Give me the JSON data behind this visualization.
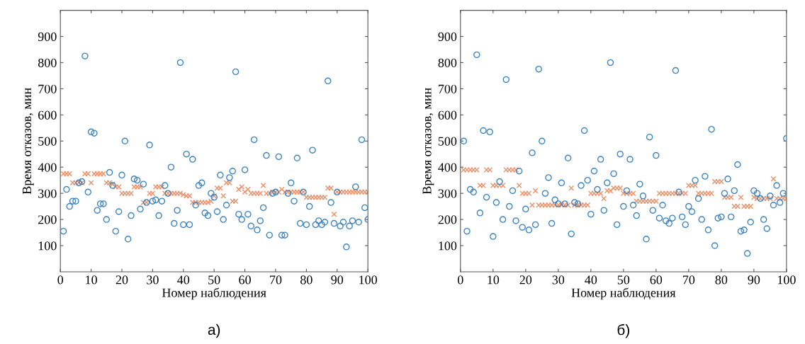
{
  "chart_data": [
    {
      "type": "scatter",
      "xlabel": "Номер наблюдения",
      "ylabel": "Время отказов, мин",
      "annotations": [
        "а)"
      ],
      "xlim": [
        0,
        100
      ],
      "ylim": [
        0,
        1000
      ],
      "xticks": [
        0,
        10,
        20,
        30,
        40,
        50,
        60,
        70,
        80,
        90,
        100
      ],
      "yticks": [
        100,
        200,
        300,
        400,
        500,
        600,
        700,
        800,
        900
      ],
      "x": [
        1,
        2,
        3,
        4,
        5,
        6,
        7,
        8,
        9,
        10,
        11,
        12,
        13,
        14,
        15,
        16,
        17,
        18,
        19,
        20,
        21,
        22,
        23,
        24,
        25,
        26,
        27,
        28,
        29,
        30,
        31,
        32,
        33,
        34,
        35,
        36,
        37,
        38,
        39,
        40,
        41,
        42,
        43,
        44,
        45,
        46,
        47,
        48,
        49,
        50,
        51,
        52,
        53,
        54,
        55,
        56,
        57,
        58,
        59,
        60,
        61,
        62,
        63,
        64,
        65,
        66,
        67,
        68,
        69,
        70,
        71,
        72,
        73,
        74,
        75,
        76,
        77,
        78,
        79,
        80,
        81,
        82,
        83,
        84,
        85,
        86,
        87,
        88,
        89,
        90,
        91,
        92,
        93,
        94,
        95,
        96,
        97,
        98,
        99,
        100
      ],
      "series": [
        {
          "color": "#e8906a",
          "marker": "cross",
          "values": [
            375,
            375,
            375,
            340,
            340,
            340,
            340,
            375,
            375,
            340,
            375,
            375,
            375,
            375,
            340,
            340,
            335,
            325,
            325,
            300,
            300,
            300,
            300,
            325,
            325,
            325,
            265,
            265,
            300,
            300,
            325,
            325,
            325,
            300,
            300,
            300,
            300,
            300,
            300,
            295,
            290,
            290,
            265,
            265,
            265,
            265,
            265,
            265,
            270,
            290,
            320,
            320,
            290,
            340,
            340,
            270,
            270,
            315,
            325,
            305,
            315,
            300,
            300,
            300,
            300,
            330,
            300,
            300,
            305,
            305,
            305,
            315,
            305,
            305,
            305,
            305,
            305,
            305,
            305,
            285,
            285,
            285,
            285,
            285,
            285,
            285,
            320,
            320,
            220,
            305,
            305,
            305,
            305,
            305,
            305,
            305,
            305,
            305,
            305,
            305
          ]
        },
        {
          "color": "#3d85c0",
          "marker": "circle",
          "values": [
            155,
            315,
            250,
            270,
            270,
            340,
            345,
            825,
            305,
            535,
            530,
            235,
            260,
            260,
            200,
            380,
            330,
            155,
            230,
            370,
            500,
            125,
            215,
            355,
            350,
            240,
            335,
            265,
            485,
            270,
            275,
            215,
            270,
            330,
            300,
            400,
            185,
            235,
            800,
            180,
            450,
            180,
            430,
            255,
            330,
            340,
            225,
            215,
            300,
            285,
            230,
            370,
            200,
            255,
            360,
            385,
            765,
            220,
            200,
            390,
            220,
            175,
            505,
            160,
            195,
            245,
            445,
            140,
            300,
            305,
            440,
            140,
            140,
            300,
            340,
            270,
            435,
            185,
            305,
            180,
            250,
            465,
            180,
            195,
            180,
            190,
            730,
            265,
            185,
            305,
            175,
            190,
            95,
            175,
            195,
            325,
            190,
            505,
            245,
            200
          ]
        }
      ]
    },
    {
      "type": "scatter",
      "xlabel": "Номер наблюдения",
      "ylabel": "Время отказов, мин",
      "annotations": [
        "б)"
      ],
      "xlim": [
        0,
        100
      ],
      "ylim": [
        0,
        1000
      ],
      "xticks": [
        0,
        10,
        20,
        30,
        40,
        50,
        60,
        70,
        80,
        90,
        100
      ],
      "yticks": [
        100,
        200,
        300,
        400,
        500,
        600,
        700,
        800,
        900
      ],
      "x": [
        1,
        2,
        3,
        4,
        5,
        6,
        7,
        8,
        9,
        10,
        11,
        12,
        13,
        14,
        15,
        16,
        17,
        18,
        19,
        20,
        21,
        22,
        23,
        24,
        25,
        26,
        27,
        28,
        29,
        30,
        31,
        32,
        33,
        34,
        35,
        36,
        37,
        38,
        39,
        40,
        41,
        42,
        43,
        44,
        45,
        46,
        47,
        48,
        49,
        50,
        51,
        52,
        53,
        54,
        55,
        56,
        57,
        58,
        59,
        60,
        61,
        62,
        63,
        64,
        65,
        66,
        67,
        68,
        69,
        70,
        71,
        72,
        73,
        74,
        75,
        76,
        77,
        78,
        79,
        80,
        81,
        82,
        83,
        84,
        85,
        86,
        87,
        88,
        89,
        90,
        91,
        92,
        93,
        94,
        95,
        96,
        97,
        98,
        99,
        100
      ],
      "series": [
        {
          "color": "#e8906a",
          "marker": "cross",
          "values": [
            390,
            390,
            390,
            390,
            390,
            330,
            330,
            390,
            390,
            330,
            330,
            330,
            330,
            390,
            390,
            390,
            390,
            330,
            300,
            300,
            300,
            255,
            310,
            255,
            255,
            255,
            255,
            255,
            255,
            255,
            255,
            255,
            255,
            320,
            255,
            255,
            255,
            255,
            255,
            300,
            300,
            300,
            300,
            280,
            310,
            310,
            320,
            320,
            320,
            300,
            300,
            300,
            300,
            270,
            270,
            270,
            270,
            270,
            270,
            270,
            300,
            300,
            300,
            300,
            300,
            300,
            300,
            300,
            300,
            330,
            330,
            330,
            300,
            300,
            300,
            300,
            300,
            345,
            345,
            345,
            285,
            285,
            285,
            250,
            250,
            285,
            250,
            250,
            250,
            285,
            280,
            280,
            280,
            280,
            280,
            355,
            280,
            280,
            280,
            280
          ]
        },
        {
          "color": "#3d85c0",
          "marker": "circle",
          "values": [
            500,
            155,
            315,
            305,
            830,
            225,
            540,
            285,
            535,
            135,
            265,
            345,
            200,
            735,
            250,
            310,
            195,
            385,
            170,
            240,
            160,
            455,
            180,
            775,
            500,
            300,
            360,
            185,
            275,
            260,
            340,
            260,
            435,
            145,
            265,
            260,
            330,
            540,
            350,
            220,
            385,
            315,
            430,
            235,
            340,
            800,
            375,
            180,
            450,
            250,
            310,
            430,
            255,
            215,
            335,
            290,
            125,
            515,
            235,
            445,
            205,
            255,
            195,
            185,
            205,
            770,
            305,
            210,
            180,
            250,
            230,
            350,
            280,
            200,
            365,
            160,
            545,
            100,
            205,
            210,
            300,
            355,
            210,
            310,
            410,
            155,
            160,
            70,
            190,
            310,
            300,
            280,
            200,
            165,
            290,
            255,
            330,
            265,
            300,
            510
          ]
        }
      ]
    }
  ]
}
